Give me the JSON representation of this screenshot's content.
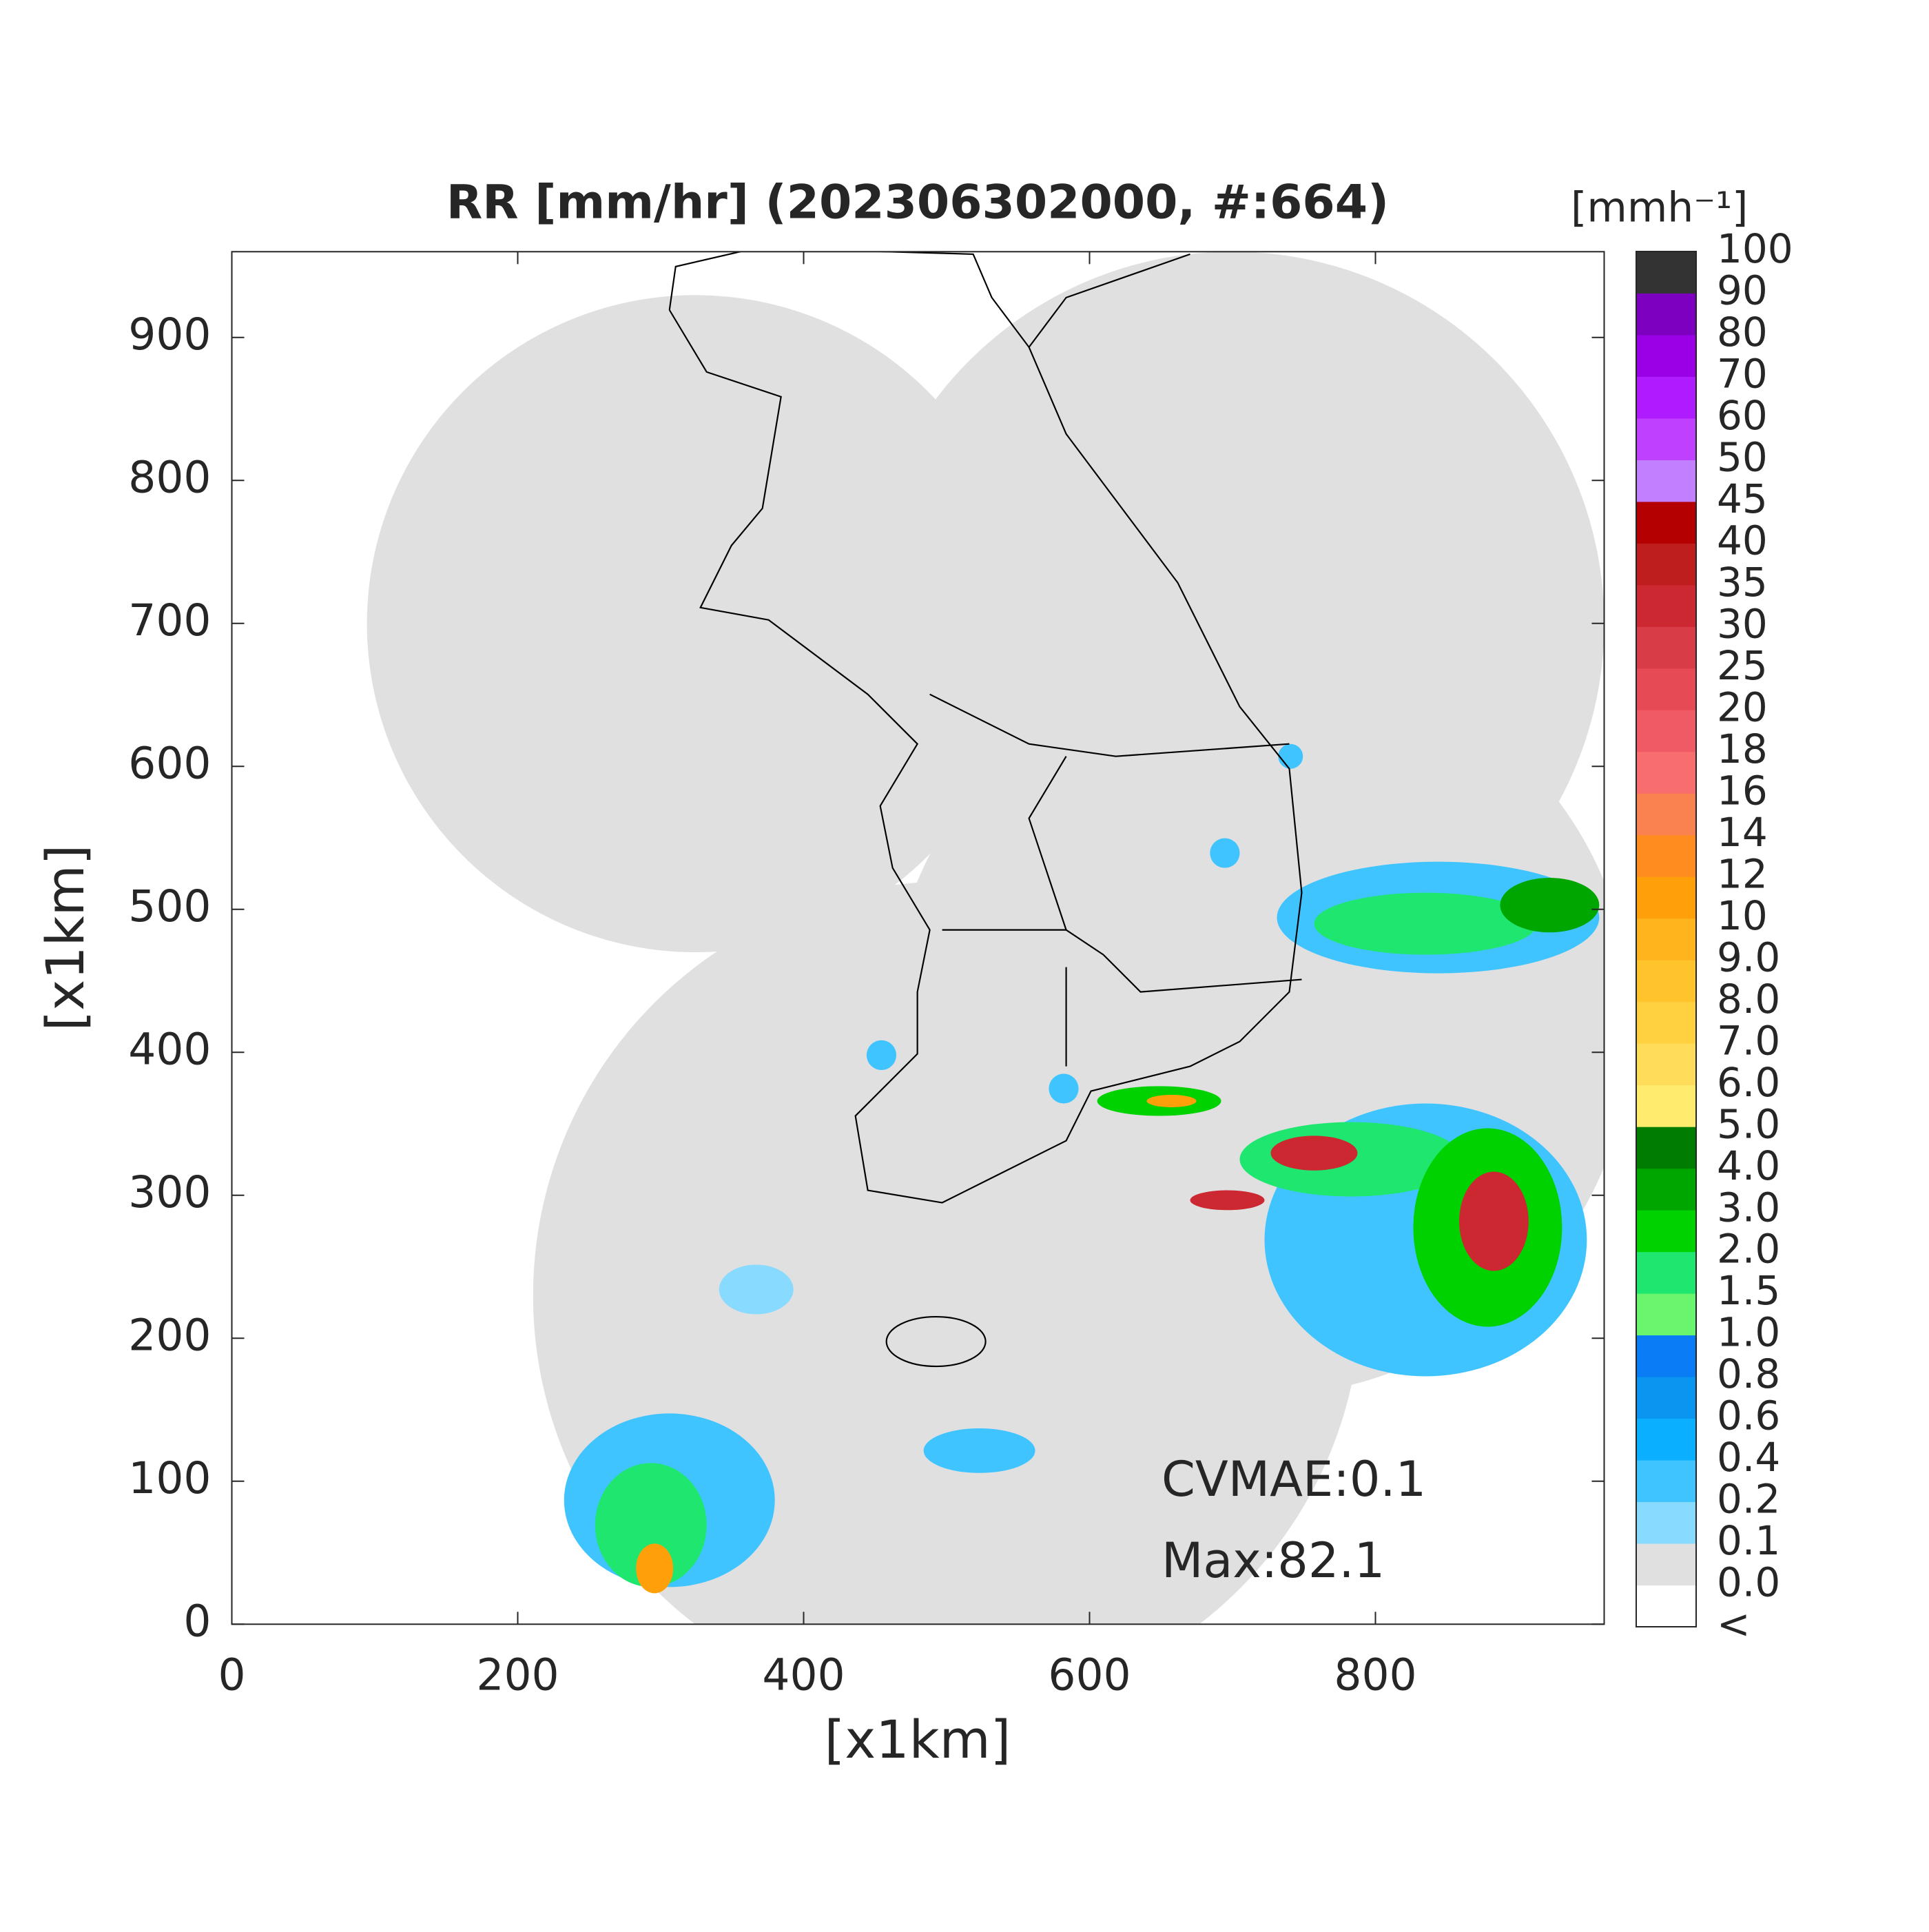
{
  "chart_data": {
    "type": "radar-map",
    "title": "RR [mm/hr] (202306302000, #:664)",
    "xlabel": "[x1km]",
    "ylabel": "[x1km]",
    "xlim": [
      0,
      960
    ],
    "ylim": [
      0,
      960
    ],
    "xticks": [
      0,
      200,
      400,
      600,
      800
    ],
    "yticks": [
      0,
      100,
      200,
      300,
      400,
      500,
      600,
      700,
      800,
      900
    ],
    "grid": false,
    "annotations": [
      "CVMAE:0.1",
      "Max:82.1"
    ],
    "colorbar": {
      "title": "[mmh⁻¹]",
      "labels": [
        "<",
        "0.0",
        "0.1",
        "0.2",
        "0.4",
        "0.6",
        "0.8",
        "1.0",
        "1.5",
        "2.0",
        "3.0",
        "4.0",
        "5.0",
        "6.0",
        "7.0",
        "8.0",
        "9.0",
        "10",
        "12",
        "14",
        "16",
        "18",
        "20",
        "25",
        "30",
        "35",
        "40",
        "45",
        "50",
        "60",
        "70",
        "80",
        "90",
        "100"
      ],
      "colors": [
        "#ffffff",
        "#e0e0e0",
        "#88daff",
        "#40c4ff",
        "#0ab0ff",
        "#0a96f0",
        "#0a7cf5",
        "#69f56e",
        "#1ee66e",
        "#00d200",
        "#00a600",
        "#007d00",
        "#ffec6e",
        "#ffdc5a",
        "#ffd040",
        "#ffc42c",
        "#ffb41e",
        "#ffa00a",
        "#ff8c1e",
        "#fa8250",
        "#f86e6e",
        "#f05a64",
        "#e64b55",
        "#d83c46",
        "#cc2832",
        "#be1e1e",
        "#b40000",
        "#c080ff",
        "#c040ff",
        "#b01aff",
        "#9a00e6",
        "#7d00c0",
        "#333333"
      ]
    }
  }
}
